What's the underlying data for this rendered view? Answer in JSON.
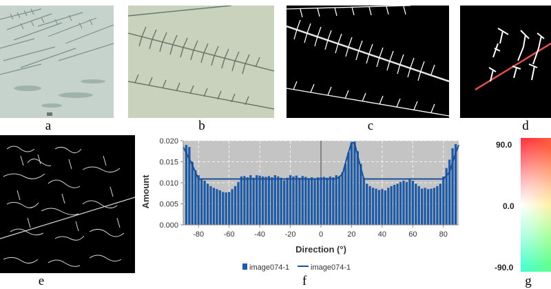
{
  "panels": {
    "a": "a",
    "b": "b",
    "c": "c",
    "d": "d",
    "e": "e",
    "f": "f",
    "g": "g"
  },
  "colors": {
    "micrograph_a": "#c5d3cc",
    "micrograph_b": "#c9d2bd",
    "bar": "#1f5aa6",
    "fit_line": "#1a4f9a",
    "plot_bg": "#c4c4c4",
    "trace_line": "#e05050"
  },
  "chart_data": {
    "type": "bar",
    "xlabel": "Direction (°)",
    "ylabel": "Amount",
    "xlim": [
      -90,
      90
    ],
    "ylim": [
      0,
      0.02
    ],
    "xticks": [
      "-80",
      "-60",
      "-40",
      "-20",
      "0",
      "20",
      "40",
      "60",
      "80"
    ],
    "yticks": [
      "0.000",
      "0.005",
      "0.010",
      "0.015",
      "0.020"
    ],
    "grid": true,
    "legend_position": "bottom",
    "series": [
      {
        "name": "image074-1",
        "kind": "bar",
        "x": [
          -88,
          -86,
          -84,
          -82,
          -80,
          -78,
          -76,
          -74,
          -72,
          -70,
          -68,
          -66,
          -64,
          -62,
          -60,
          -58,
          -56,
          -54,
          -52,
          -50,
          -48,
          -46,
          -44,
          -42,
          -40,
          -38,
          -36,
          -34,
          -32,
          -30,
          -28,
          -26,
          -24,
          -22,
          -20,
          -18,
          -16,
          -14,
          -12,
          -10,
          -8,
          -6,
          -4,
          -2,
          0,
          2,
          4,
          6,
          8,
          10,
          12,
          14,
          16,
          18,
          20,
          22,
          24,
          26,
          28,
          30,
          32,
          34,
          36,
          38,
          40,
          42,
          44,
          46,
          48,
          50,
          52,
          54,
          56,
          58,
          60,
          62,
          64,
          66,
          68,
          70,
          72,
          74,
          76,
          78,
          80,
          82,
          84,
          86,
          88
        ],
        "values": [
          0.019,
          0.0185,
          0.015,
          0.013,
          0.0118,
          0.011,
          0.0105,
          0.0098,
          0.0092,
          0.0088,
          0.0085,
          0.0082,
          0.0078,
          0.0077,
          0.0078,
          0.0085,
          0.0092,
          0.0102,
          0.0115,
          0.0116,
          0.0113,
          0.0118,
          0.0112,
          0.0118,
          0.0117,
          0.0115,
          0.0114,
          0.0116,
          0.0113,
          0.0118,
          0.0115,
          0.0112,
          0.0106,
          0.0112,
          0.0118,
          0.0115,
          0.0117,
          0.0112,
          0.0116,
          0.0114,
          0.0111,
          0.0113,
          0.011,
          0.0113,
          0.0113,
          0.0114,
          0.0112,
          0.0115,
          0.0113,
          0.0118,
          0.0115,
          0.0125,
          0.0145,
          0.0172,
          0.0195,
          0.0198,
          0.0175,
          0.0145,
          0.0112,
          0.0098,
          0.0092,
          0.0088,
          0.0086,
          0.0083,
          0.0085,
          0.0082,
          0.0088,
          0.0092,
          0.0095,
          0.0098,
          0.0102,
          0.0105,
          0.0102,
          0.0108,
          0.0105,
          0.0098,
          0.0092,
          0.0086,
          0.0088,
          0.0085,
          0.0086,
          0.0088,
          0.0092,
          0.0098,
          0.0115,
          0.0135,
          0.0155,
          0.0182,
          0.0192
        ]
      },
      {
        "name": "image074-1",
        "kind": "line",
        "x": [
          -90,
          -85,
          -82,
          -80,
          -76,
          -70,
          -60,
          -50,
          -40,
          -30,
          -20,
          -10,
          0,
          10,
          14,
          17,
          20,
          22,
          25,
          28,
          30,
          40,
          50,
          60,
          70,
          80,
          84,
          87,
          90
        ],
        "values": [
          0.0185,
          0.015,
          0.0125,
          0.0109,
          0.0109,
          0.0109,
          0.0109,
          0.0109,
          0.0109,
          0.0109,
          0.0109,
          0.0109,
          0.0109,
          0.0109,
          0.012,
          0.016,
          0.0196,
          0.0194,
          0.015,
          0.0109,
          0.0109,
          0.0109,
          0.0109,
          0.0109,
          0.0109,
          0.0109,
          0.0125,
          0.016,
          0.019
        ]
      }
    ],
    "legend": [
      "image074-1",
      "image074-1"
    ]
  },
  "wheel": {
    "top": "90.0",
    "middle": "0.0",
    "bottom": "-90.0"
  }
}
